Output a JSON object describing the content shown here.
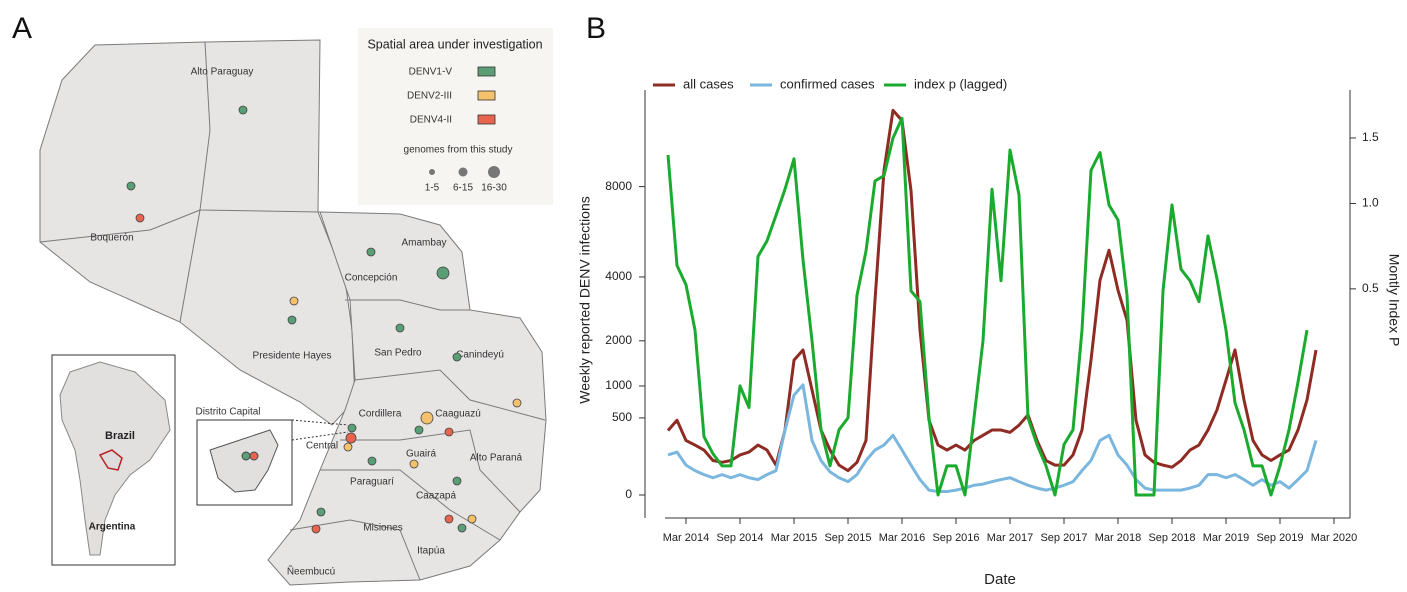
{
  "panel_labels": [
    "A",
    "B"
  ],
  "map": {
    "legend_title": "Spatial area under investigation",
    "legend_items": [
      "DENV1-V",
      "DENV2-III",
      "DENV4-II"
    ],
    "size_title": "genomes from this study",
    "size_labels": [
      "1-5",
      "6-15",
      "16-30"
    ],
    "regions": [
      "Alto Paraguay",
      "Boquerón",
      "Presidente Hayes",
      "Concepción",
      "Amambay",
      "San Pedro",
      "Canindeyú",
      "Cordillera",
      "Caaguazú",
      "Central",
      "Alto Paraná",
      "Guairá",
      "Paraguarí",
      "Caazapá",
      "Misiones",
      "Ñeembucú",
      "Itapúa"
    ],
    "inset_labels": [
      "Brazil",
      "Argentina"
    ],
    "capital_label": "Distrito Capital"
  },
  "chart_data": {
    "type": "line",
    "x_label": "Date",
    "y_label": "Weekly reported DENV infections",
    "y2_label": "Montly Index P",
    "y_scale": "sqrt",
    "y2_scale": "sqrt",
    "ylim": [
      0,
      13800
    ],
    "yticks": [
      0,
      500,
      1000,
      2000,
      4000,
      8000
    ],
    "y2lim": [
      0,
      1.93
    ],
    "y2ticks": [
      0.5,
      {
        "value": 1,
        "label": "1.0"
      },
      1.5
    ],
    "xticks": [
      {
        "value": "2014-03",
        "label": "Mar 2014"
      },
      {
        "value": "2014-09",
        "label": "Sep 2014"
      },
      {
        "value": "2015-03",
        "label": "Mar 2015"
      },
      {
        "value": "2015-09",
        "label": "Sep 2015"
      },
      {
        "value": "2016-03",
        "label": "Mar 2016"
      },
      {
        "value": "2016-09",
        "label": "Sep 2016"
      },
      {
        "value": "2017-03",
        "label": "Mar 2017"
      },
      {
        "value": "2017-09",
        "label": "Sep 2017"
      },
      {
        "value": "2018-03",
        "label": "Mar 2018"
      },
      {
        "value": "2018-09",
        "label": "Sep 2018"
      },
      {
        "value": "2019-03",
        "label": "Mar 2019"
      },
      {
        "value": "2019-09",
        "label": "Sep 2019"
      },
      {
        "value": "2020-03",
        "label": "Mar 2020"
      }
    ],
    "x": [
      "2014-01",
      "2014-02",
      "2014-03",
      "2014-04",
      "2014-05",
      "2014-06",
      "2014-07",
      "2014-08",
      "2014-09",
      "2014-10",
      "2014-11",
      "2014-12",
      "2015-01",
      "2015-02",
      "2015-03",
      "2015-04",
      "2015-05",
      "2015-06",
      "2015-07",
      "2015-08",
      "2015-09",
      "2015-10",
      "2015-11",
      "2015-12",
      "2016-01",
      "2016-02",
      "2016-03",
      "2016-04",
      "2016-05",
      "2016-06",
      "2016-07",
      "2016-08",
      "2016-09",
      "2016-10",
      "2016-11",
      "2016-12",
      "2017-01",
      "2017-02",
      "2017-03",
      "2017-04",
      "2017-05",
      "2017-06",
      "2017-07",
      "2017-08",
      "2017-09",
      "2017-10",
      "2017-11",
      "2017-12",
      "2018-01",
      "2018-02",
      "2018-03",
      "2018-04",
      "2018-05",
      "2018-06",
      "2018-07",
      "2018-08",
      "2018-09",
      "2018-10",
      "2018-11",
      "2018-12",
      "2019-01",
      "2019-02",
      "2019-03",
      "2019-04",
      "2019-05",
      "2019-06",
      "2019-07",
      "2019-08",
      "2019-09",
      "2019-10",
      "2019-11",
      "2019-12",
      "2020-01"
    ],
    "series": [
      {
        "name": "all cases",
        "color": "#8e2b23",
        "values": [
          350,
          470,
          250,
          210,
          170,
          100,
          90,
          100,
          135,
          155,
          210,
          170,
          75,
          355,
          1530,
          1770,
          930,
          355,
          170,
          75,
          50,
          90,
          250,
          3190,
          8870,
          12450,
          11800,
          7800,
          2290,
          470,
          210,
          170,
          210,
          170,
          250,
          300,
          355,
          355,
          330,
          410,
          540,
          250,
          100,
          75,
          75,
          135,
          355,
          1530,
          3880,
          5040,
          3530,
          2570,
          470,
          135,
          90,
          75,
          65,
          100,
          170,
          210,
          355,
          610,
          1110,
          1770,
          760,
          250,
          135,
          100,
          135,
          170,
          355,
          760,
          1770
        ]
      },
      {
        "name": "confirmed cases",
        "color": "#7ab6de",
        "values": [
          135,
          155,
          75,
          50,
          35,
          25,
          35,
          25,
          35,
          25,
          20,
          35,
          50,
          355,
          840,
          1020,
          250,
          100,
          45,
          25,
          15,
          35,
          100,
          170,
          210,
          300,
          170,
          75,
          20,
          2,
          1,
          1,
          2,
          4,
          8,
          10,
          15,
          20,
          25,
          15,
          8,
          4,
          2,
          4,
          8,
          15,
          50,
          100,
          250,
          300,
          135,
          75,
          20,
          4,
          2,
          2,
          2,
          2,
          4,
          8,
          35,
          35,
          25,
          35,
          20,
          8,
          20,
          8,
          15,
          4,
          20,
          50,
          250
        ]
      },
      {
        "name": "index p (lagged)",
        "color": "#1aab2e",
        "axis": "y2",
        "values": [
          1.36,
          0.62,
          0.52,
          0.32,
          0.04,
          0.02,
          0.01,
          0.01,
          0.14,
          0.09,
          0.67,
          0.76,
          0.92,
          1.1,
          1.33,
          0.65,
          0.28,
          0.05,
          0.01,
          0.05,
          0.07,
          0.47,
          0.7,
          1.16,
          1.2,
          1.5,
          1.67,
          0.49,
          0.44,
          0.07,
          0,
          0.01,
          0.01,
          0,
          0.07,
          0.28,
          1.1,
          0.54,
          1.4,
          1.06,
          0.07,
          0.03,
          0.01,
          0,
          0.03,
          0.05,
          0.32,
          1.24,
          1.38,
          0.99,
          0.89,
          0.47,
          0,
          0,
          0,
          0.49,
          0.99,
          0.6,
          0.54,
          0.44,
          0.79,
          0.55,
          0.32,
          0.1,
          0.05,
          0.01,
          0.01,
          0,
          0.01,
          0.05,
          0.15,
          0.32,
          null
        ]
      }
    ]
  }
}
